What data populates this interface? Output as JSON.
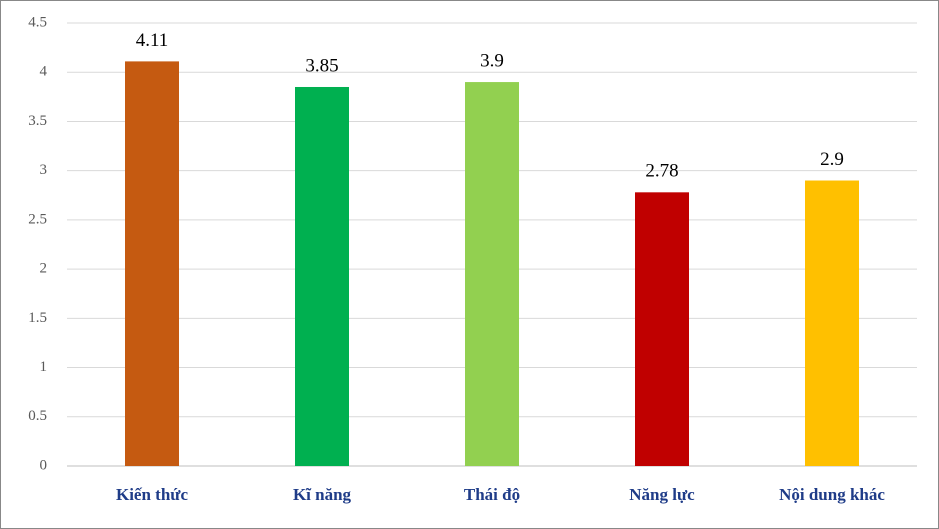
{
  "chart_data": {
    "type": "bar",
    "categories": [
      "Kiến thức",
      "Kĩ năng",
      "Thái độ",
      "Năng lực",
      "Nội dung khác"
    ],
    "values": [
      4.11,
      3.85,
      3.9,
      2.78,
      2.9
    ],
    "colors": [
      "#c55a11",
      "#00b050",
      "#92d050",
      "#c00000",
      "#ffc000"
    ],
    "ylim": [
      0,
      4.5
    ],
    "yticks": [
      0,
      0.5,
      1,
      1.5,
      2,
      2.5,
      3,
      3.5,
      4,
      4.5
    ],
    "grid": true
  }
}
